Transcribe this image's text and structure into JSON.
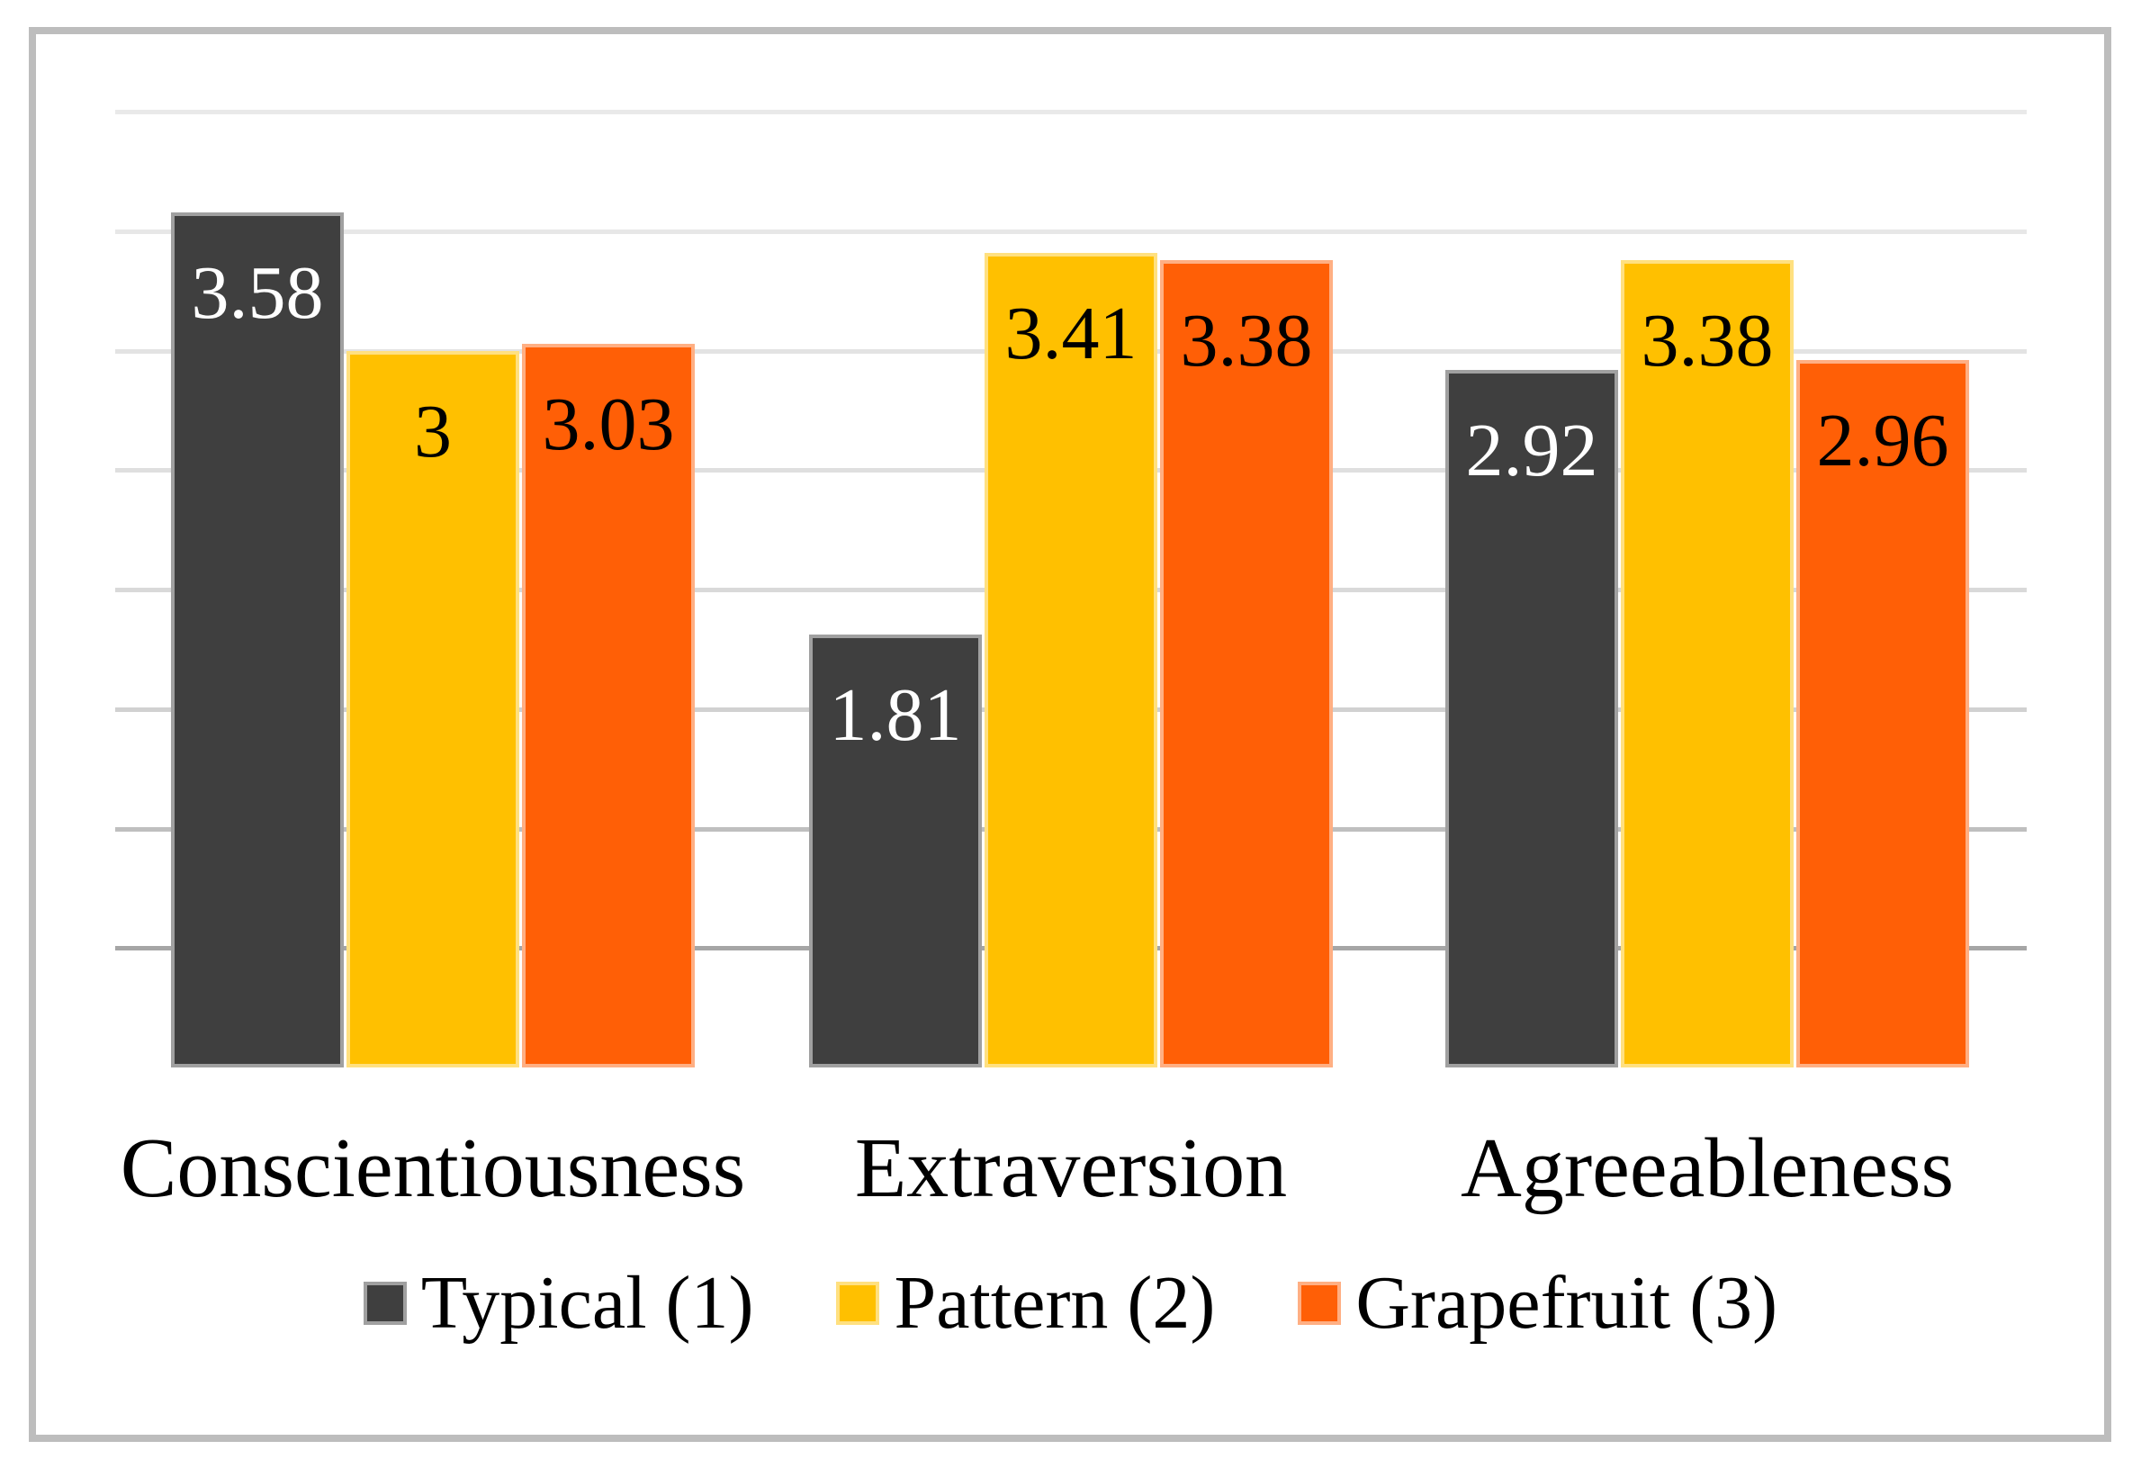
{
  "chart_data": {
    "type": "bar",
    "title": "",
    "xlabel": "",
    "ylabel": "",
    "categories": [
      "Conscientiousness",
      "Extraversion",
      "Agreeableness"
    ],
    "series": [
      {
        "name": "Typical (1)",
        "color": "#3F3F3F",
        "border_color": "#A0A0A0",
        "label_color": "#FFFFFF",
        "values": [
          3.58,
          1.81,
          2.92
        ],
        "labels": [
          "3.58",
          "1.81",
          "2.92"
        ]
      },
      {
        "name": "Pattern (2)",
        "color": "#FFC000",
        "border_color": "#FFE080",
        "label_color": "#000000",
        "values": [
          3,
          3.41,
          3.38
        ],
        "labels": [
          "3",
          "3.41",
          "3.38"
        ]
      },
      {
        "name": "Grapefruit (3)",
        "color": "#FF5F06",
        "border_color": "#FFAF83",
        "label_color": "#000000",
        "values": [
          3.03,
          3.38,
          2.96
        ],
        "labels": [
          "3.03",
          "3.38",
          "2.96"
        ]
      }
    ],
    "ylim": [
      0,
      4.3
    ],
    "gridlines": {
      "values": [
        4.0,
        3.5,
        3.0,
        2.5,
        2.0,
        1.5,
        1.0,
        0.5
      ],
      "colors": [
        "#E9E9E9",
        "#E7E7E7",
        "#E3E3E3",
        "#DFDFDF",
        "#D9D9D9",
        "#D1D1D1",
        "#BFBFBF",
        "#A6A6A6"
      ]
    },
    "grid": "horizontal",
    "axes_visible": false,
    "data_labels": "inside-end",
    "legend_position": "bottom",
    "frame_border_color": "#BDBDBD",
    "background_color": "#FFFFFF"
  }
}
